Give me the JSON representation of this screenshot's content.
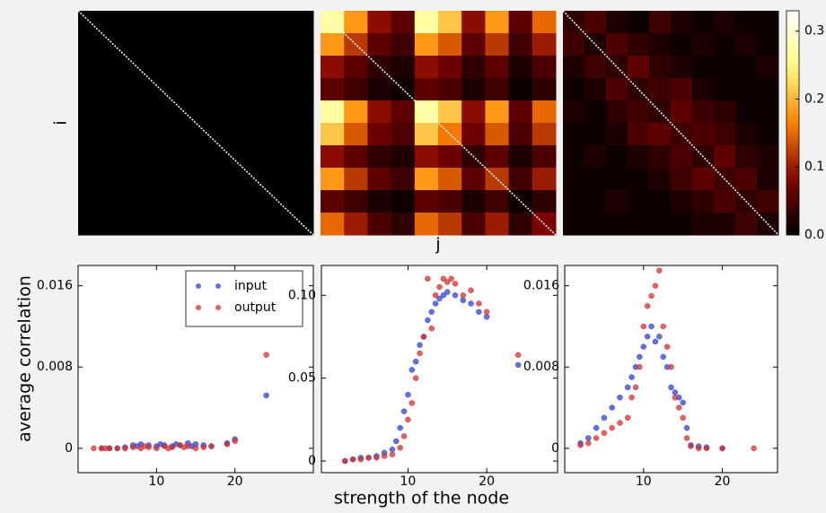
{
  "chart_data": [
    {
      "type": "heatmap",
      "xlabel": "j",
      "ylabel": "i",
      "colorbar": {
        "lim": [
          0,
          0.33
        ],
        "ticks": [
          {
            "value": 0,
            "label": "0.0"
          },
          {
            "value": 0.1,
            "label": "0.1"
          },
          {
            "value": 0.2,
            "label": "0.2"
          },
          {
            "value": 0.3,
            "label": "0.3"
          }
        ]
      },
      "matrices": [
        [
          [
            0,
            0,
            0,
            0,
            0,
            0,
            0,
            0,
            0,
            0
          ],
          [
            0,
            0,
            0,
            0,
            0,
            0,
            0,
            0,
            0,
            0
          ],
          [
            0,
            0,
            0,
            0,
            0,
            0,
            0,
            0,
            0,
            0
          ],
          [
            0,
            0,
            0,
            0,
            0,
            0,
            0,
            0,
            0,
            0
          ],
          [
            0,
            0,
            0,
            0,
            0,
            0,
            0,
            0,
            0,
            0
          ],
          [
            0,
            0,
            0,
            0,
            0,
            0,
            0,
            0,
            0,
            0
          ],
          [
            0,
            0,
            0,
            0,
            0,
            0,
            0,
            0,
            0,
            0
          ],
          [
            0,
            0,
            0,
            0,
            0,
            0,
            0,
            0,
            0,
            0
          ],
          [
            0,
            0,
            0,
            0,
            0,
            0,
            0,
            0,
            0,
            0
          ],
          [
            0,
            0,
            0,
            0,
            0,
            0,
            0,
            0,
            0,
            0
          ]
        ],
        [
          [
            0.27,
            0.18,
            0.09,
            0.06,
            0.27,
            0.21,
            0.09,
            0.18,
            0.06,
            0.15
          ],
          [
            0.18,
            0.12,
            0.06,
            0.04,
            0.18,
            0.14,
            0.06,
            0.12,
            0.04,
            0.1
          ],
          [
            0.09,
            0.06,
            0.03,
            0.02,
            0.09,
            0.07,
            0.03,
            0.06,
            0.02,
            0.05
          ],
          [
            0.06,
            0.04,
            0.02,
            0.01,
            0.06,
            0.05,
            0.02,
            0.04,
            0.01,
            0.03
          ],
          [
            0.27,
            0.18,
            0.09,
            0.06,
            0.27,
            0.21,
            0.09,
            0.18,
            0.06,
            0.15
          ],
          [
            0.21,
            0.14,
            0.07,
            0.05,
            0.21,
            0.16,
            0.07,
            0.14,
            0.05,
            0.12
          ],
          [
            0.09,
            0.06,
            0.03,
            0.02,
            0.09,
            0.07,
            0.03,
            0.06,
            0.02,
            0.05
          ],
          [
            0.18,
            0.12,
            0.06,
            0.04,
            0.18,
            0.14,
            0.06,
            0.12,
            0.04,
            0.1
          ],
          [
            0.06,
            0.04,
            0.02,
            0.01,
            0.06,
            0.05,
            0.02,
            0.04,
            0.01,
            0.03
          ],
          [
            0.15,
            0.1,
            0.05,
            0.03,
            0.15,
            0.12,
            0.05,
            0.1,
            0.03,
            0.08
          ]
        ],
        [
          [
            0.03,
            0.05,
            0.02,
            0.01,
            0.04,
            0.02,
            0.01,
            0.02,
            0.01,
            0.01
          ],
          [
            0.04,
            0.02,
            0.05,
            0.03,
            0.02,
            0.01,
            0.02,
            0.01,
            0.02,
            0.01
          ],
          [
            0.02,
            0.04,
            0.03,
            0.06,
            0.03,
            0.02,
            0.01,
            0.01,
            0.01,
            0.02
          ],
          [
            0.01,
            0.02,
            0.05,
            0.03,
            0.04,
            0.05,
            0.02,
            0.01,
            0.01,
            0.01
          ],
          [
            0.02,
            0.01,
            0.03,
            0.04,
            0.03,
            0.06,
            0.04,
            0.03,
            0.01,
            0.01
          ],
          [
            0.01,
            0.01,
            0.02,
            0.05,
            0.06,
            0.04,
            0.05,
            0.04,
            0.02,
            0.01
          ],
          [
            0.01,
            0.02,
            0.01,
            0.02,
            0.03,
            0.05,
            0.03,
            0.06,
            0.03,
            0.02
          ],
          [
            0.01,
            0.01,
            0.01,
            0.01,
            0.02,
            0.04,
            0.06,
            0.04,
            0.05,
            0.02
          ],
          [
            0.01,
            0.01,
            0.02,
            0.01,
            0.01,
            0.02,
            0.03,
            0.05,
            0.03,
            0.04
          ],
          [
            0.01,
            0.01,
            0.01,
            0.01,
            0.01,
            0.01,
            0.02,
            0.02,
            0.04,
            0.02
          ]
        ]
      ]
    },
    {
      "type": "scatter",
      "ylabel": "average correlation",
      "xlim": [
        0,
        30
      ],
      "xticks": [
        10,
        20
      ],
      "ylim": [
        -0.0024,
        0.018
      ],
      "yticks": [
        0,
        0.008,
        0.016
      ],
      "legend": "upper right",
      "series": [
        {
          "name": "input",
          "color": "#3040d0",
          "x": [
            3,
            4,
            5,
            6,
            7,
            7.5,
            8,
            9,
            10,
            10.5,
            11,
            12,
            12.5,
            13,
            14,
            14.5,
            15,
            16,
            17,
            19,
            20,
            24
          ],
          "values": [
            0,
            0,
            0,
            0.0001,
            0.0003,
            0.0002,
            0.0004,
            0.0003,
            0.0002,
            0.0004,
            0.0003,
            0.0002,
            0.0004,
            0.0003,
            0.0005,
            0.0002,
            0.0004,
            0.0003,
            0.0002,
            0.0005,
            0.0009,
            0.0052
          ]
        },
        {
          "name": "output",
          "color": "#d03030",
          "x": [
            2,
            3,
            3.5,
            4,
            5,
            6,
            7,
            8,
            8.5,
            9,
            10,
            11,
            11.5,
            12,
            13,
            13.5,
            14,
            15,
            16,
            17,
            19,
            20,
            24
          ],
          "values": [
            0,
            0,
            0,
            0,
            0,
            0,
            0.0001,
            0,
            0.0002,
            0.0001,
            0,
            0.0002,
            0,
            0.0001,
            0.0003,
            0.0001,
            0.0002,
            0,
            0.0001,
            0.0002,
            0.0004,
            0.0007,
            0.0092
          ]
        }
      ]
    },
    {
      "type": "scatter",
      "xlabel": "strength of the node",
      "xlim": [
        -1,
        29
      ],
      "xticks": [
        10,
        20
      ],
      "ylim": [
        -0.007,
        0.118
      ],
      "yticks": [
        0,
        0.05,
        {
          "value": 0.1,
          "label": "0.10"
        }
      ],
      "series": [
        {
          "color": "#3040d0",
          "x": [
            2,
            3,
            4,
            5,
            6,
            7,
            8,
            8.5,
            9,
            9.5,
            10,
            10.5,
            11,
            11.5,
            12,
            12.5,
            13,
            13.5,
            14,
            14.5,
            15,
            16,
            17,
            18,
            19,
            20,
            24
          ],
          "values": [
            0,
            0.001,
            0.002,
            0.002,
            0.003,
            0.005,
            0.007,
            0.012,
            0.02,
            0.03,
            0.04,
            0.055,
            0.06,
            0.07,
            0.075,
            0.085,
            0.09,
            0.095,
            0.098,
            0.1,
            0.102,
            0.1,
            0.097,
            0.095,
            0.09,
            0.087,
            0.058
          ]
        },
        {
          "color": "#d03030",
          "x": [
            2,
            3,
            4,
            5,
            6,
            7,
            8,
            9,
            9.5,
            10,
            10.5,
            11,
            11.5,
            12,
            12.5,
            13,
            13.5,
            14,
            14.5,
            15,
            15.5,
            16,
            17,
            18,
            19,
            20,
            24
          ],
          "values": [
            0,
            0.001,
            0.001,
            0.002,
            0.002,
            0.003,
            0.004,
            0.008,
            0.015,
            0.025,
            0.035,
            0.05,
            0.065,
            0.075,
            0.11,
            0.08,
            0.1,
            0.105,
            0.11,
            0.108,
            0.11,
            0.107,
            0.1,
            0.103,
            0.095,
            0.09,
            0.064
          ]
        }
      ]
    },
    {
      "type": "scatter",
      "xlim": [
        0,
        27
      ],
      "xticks": [
        10,
        20
      ],
      "ylim": [
        -0.0024,
        0.018
      ],
      "yticks": [
        0,
        0.008,
        0.016
      ],
      "series": [
        {
          "color": "#3040d0",
          "x": [
            2,
            3,
            4,
            5,
            6,
            7,
            8,
            8.5,
            9,
            9.5,
            10,
            10.5,
            11,
            11.5,
            12,
            12.5,
            13,
            13.5,
            14,
            14.5,
            15,
            15.5,
            16,
            17,
            18,
            20
          ],
          "values": [
            0.0005,
            0.001,
            0.002,
            0.003,
            0.004,
            0.005,
            0.006,
            0.007,
            0.008,
            0.009,
            0.01,
            0.011,
            0.012,
            0.0105,
            0.011,
            0.009,
            0.008,
            0.006,
            0.0055,
            0.005,
            0.0045,
            0.002,
            0.0003,
            0.0002,
            0.0001,
            0
          ]
        },
        {
          "color": "#d03030",
          "x": [
            2,
            3,
            4,
            5,
            6,
            7,
            8,
            8.5,
            9,
            9.5,
            10,
            10.5,
            11,
            11.5,
            12,
            12.5,
            13,
            13.5,
            14,
            14.5,
            15,
            15.5,
            16,
            17,
            18,
            20,
            24
          ],
          "values": [
            0.0003,
            0.0005,
            0.001,
            0.0015,
            0.002,
            0.0025,
            0.003,
            0.005,
            0.006,
            0.008,
            0.012,
            0.014,
            0.015,
            0.016,
            0.0175,
            0.012,
            0.01,
            0.008,
            0.005,
            0.004,
            0.003,
            0.001,
            0.0002,
            0,
            0,
            0,
            0
          ]
        }
      ]
    }
  ]
}
